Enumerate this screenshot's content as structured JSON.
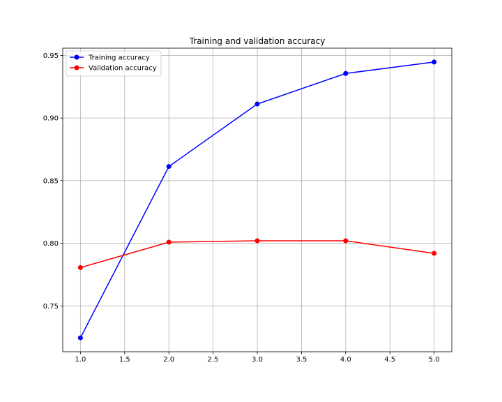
{
  "chart_data": {
    "type": "line",
    "title": "Training and validation accuracy",
    "xlabel": "",
    "ylabel": "",
    "x": [
      1.0,
      2.0,
      3.0,
      4.0,
      5.0
    ],
    "series": [
      {
        "name": "Training accuracy",
        "values": [
          0.7245,
          0.8613,
          0.9112,
          0.9356,
          0.9447
        ],
        "color": "#0000ff",
        "marker": "circle"
      },
      {
        "name": "Validation accuracy",
        "values": [
          0.7806,
          0.8009,
          0.802,
          0.802,
          0.792
        ],
        "color": "#ff0000",
        "marker": "circle"
      }
    ],
    "xlim": [
      0.8,
      5.2
    ],
    "ylim": [
      0.7134,
      0.9558
    ],
    "xticks": [
      "1.0",
      "1.5",
      "2.0",
      "2.5",
      "3.0",
      "3.5",
      "4.0",
      "4.5",
      "5.0"
    ],
    "yticks": [
      "0.75",
      "0.80",
      "0.85",
      "0.90",
      "0.95"
    ],
    "grid": true,
    "legend_position": "top-left",
    "grid_color": "#b0b0b0",
    "axis_color": "#000000"
  }
}
